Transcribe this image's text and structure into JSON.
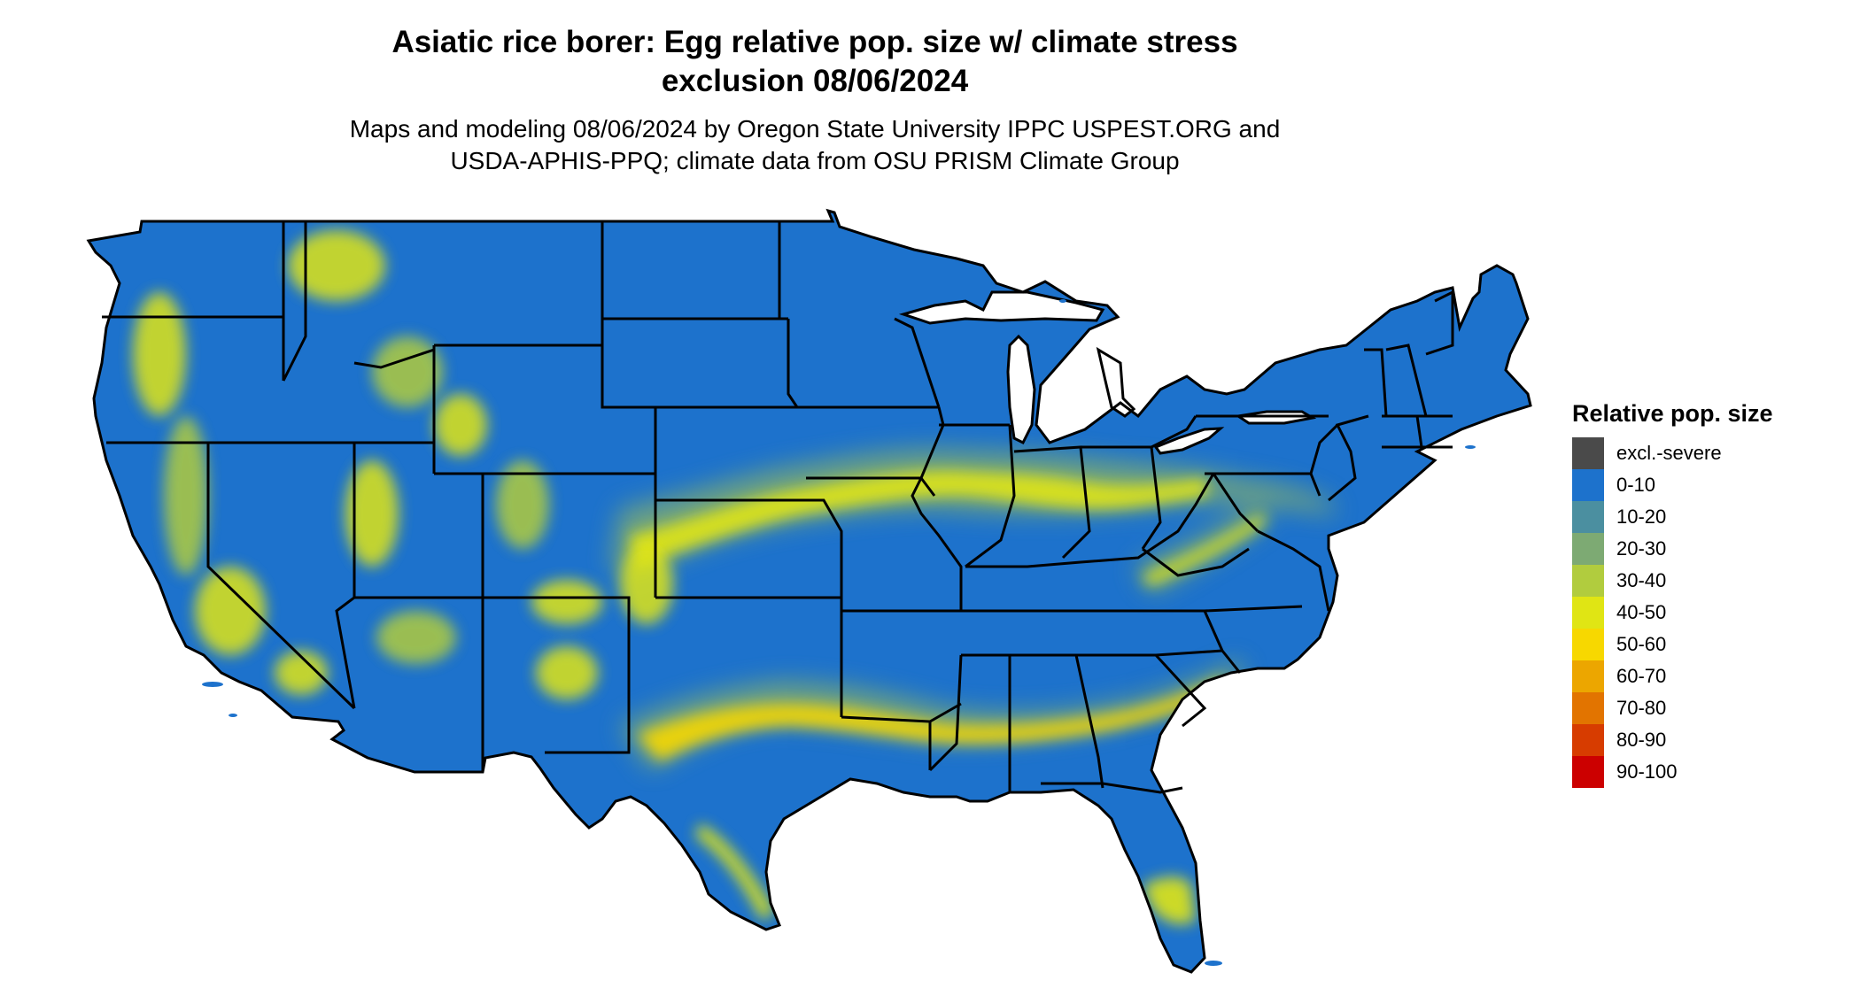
{
  "map": {
    "title_line1": "Asiatic rice borer: Egg relative pop. size w/ climate stress",
    "title_line2": "exclusion 08/06/2024",
    "subtitle_line1": "Maps and modeling 08/06/2024 by Oregon State University IPPC USPEST.ORG and",
    "subtitle_line2": "USDA-APHIS-PPQ; climate data from OSU PRISM Climate Group",
    "region": "Contiguous United States",
    "base_color": "#1d72cc",
    "boundary_color": "#000000"
  },
  "legend": {
    "title": "Relative pop. size",
    "items": [
      {
        "label": "excl.-severe",
        "color": "#4a4a4a"
      },
      {
        "label": "0-10",
        "color": "#1d72cc"
      },
      {
        "label": "10-20",
        "color": "#4b8fa0"
      },
      {
        "label": "20-30",
        "color": "#7daa73"
      },
      {
        "label": "30-40",
        "color": "#b1cc3e"
      },
      {
        "label": "40-50",
        "color": "#e0e514"
      },
      {
        "label": "50-60",
        "color": "#f7d800"
      },
      {
        "label": "60-70",
        "color": "#eca600"
      },
      {
        "label": "70-80",
        "color": "#e27400"
      },
      {
        "label": "80-90",
        "color": "#d73c00"
      },
      {
        "label": "90-100",
        "color": "#cc0000"
      }
    ]
  }
}
